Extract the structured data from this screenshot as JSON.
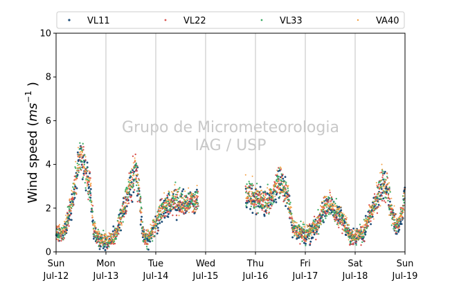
{
  "chart_data": {
    "type": "scatter",
    "title": "",
    "ylabel": "Wind speed",
    "ylabel_unit_prefix": "(",
    "ylabel_unit_base": "ms",
    "ylabel_unit_exp": "−1",
    "ylabel_unit_suffix": " )",
    "ylim": [
      0,
      10
    ],
    "yticks": [
      "0",
      "2",
      "4",
      "6",
      "8",
      "10"
    ],
    "xlim": [
      0,
      7
    ],
    "xticks": [
      {
        "day": "Sun",
        "date": "Jul-12"
      },
      {
        "day": "Mon",
        "date": "Jul-13"
      },
      {
        "day": "Tue",
        "date": "Jul-14"
      },
      {
        "day": "Wed",
        "date": "Jul-15"
      },
      {
        "day": "Thu",
        "date": "Jul-16"
      },
      {
        "day": "Fri",
        "date": "Jul-17"
      },
      {
        "day": "Sat",
        "date": "Jul-18"
      },
      {
        "day": "Sun",
        "date": "Jul-19"
      }
    ],
    "grid": "vertical",
    "legend_position": "top",
    "watermark": [
      "Grupo de Micrometeorologia",
      "IAG / USP"
    ],
    "gaps": [
      [
        2.85,
        3.8
      ]
    ],
    "profile": [
      [
        0.0,
        0.8
      ],
      [
        0.15,
        0.9
      ],
      [
        0.25,
        1.6
      ],
      [
        0.35,
        2.6
      ],
      [
        0.45,
        4.0
      ],
      [
        0.5,
        4.6
      ],
      [
        0.6,
        3.6
      ],
      [
        0.7,
        2.8
      ],
      [
        0.75,
        1.1
      ],
      [
        0.85,
        0.6
      ],
      [
        0.95,
        0.5
      ],
      [
        1.05,
        0.5
      ],
      [
        1.2,
        0.8
      ],
      [
        1.35,
        2.0
      ],
      [
        1.5,
        3.2
      ],
      [
        1.6,
        3.8
      ],
      [
        1.7,
        2.0
      ],
      [
        1.75,
        0.7
      ],
      [
        1.85,
        0.6
      ],
      [
        2.0,
        1.3
      ],
      [
        2.15,
        2.0
      ],
      [
        2.3,
        2.3
      ],
      [
        2.45,
        2.3
      ],
      [
        2.6,
        2.2
      ],
      [
        2.8,
        2.3
      ],
      [
        3.82,
        2.6
      ],
      [
        3.95,
        2.5
      ],
      [
        4.1,
        2.4
      ],
      [
        4.25,
        2.3
      ],
      [
        4.35,
        2.6
      ],
      [
        4.45,
        3.2
      ],
      [
        4.55,
        3.0
      ],
      [
        4.65,
        2.6
      ],
      [
        4.75,
        1.1
      ],
      [
        4.9,
        0.9
      ],
      [
        5.0,
        0.8
      ],
      [
        5.1,
        0.9
      ],
      [
        5.25,
        1.3
      ],
      [
        5.35,
        1.9
      ],
      [
        5.5,
        2.2
      ],
      [
        5.6,
        1.8
      ],
      [
        5.7,
        1.6
      ],
      [
        5.8,
        1.2
      ],
      [
        5.9,
        0.7
      ],
      [
        6.0,
        0.7
      ],
      [
        6.15,
        0.8
      ],
      [
        6.3,
        1.6
      ],
      [
        6.45,
        2.6
      ],
      [
        6.55,
        3.2
      ],
      [
        6.65,
        2.8
      ],
      [
        6.75,
        1.7
      ],
      [
        6.85,
        1.1
      ],
      [
        6.95,
        1.8
      ],
      [
        7.0,
        2.8
      ]
    ],
    "series": [
      {
        "name": "VL11",
        "color": "#1f4e79",
        "size": 2.1
      },
      {
        "name": "VL22",
        "color": "#d9534f",
        "size": 1.6
      },
      {
        "name": "VL33",
        "color": "#3caa64",
        "size": 1.5
      },
      {
        "name": "VA40",
        "color": "#f5a042",
        "size": 1.2
      }
    ]
  }
}
